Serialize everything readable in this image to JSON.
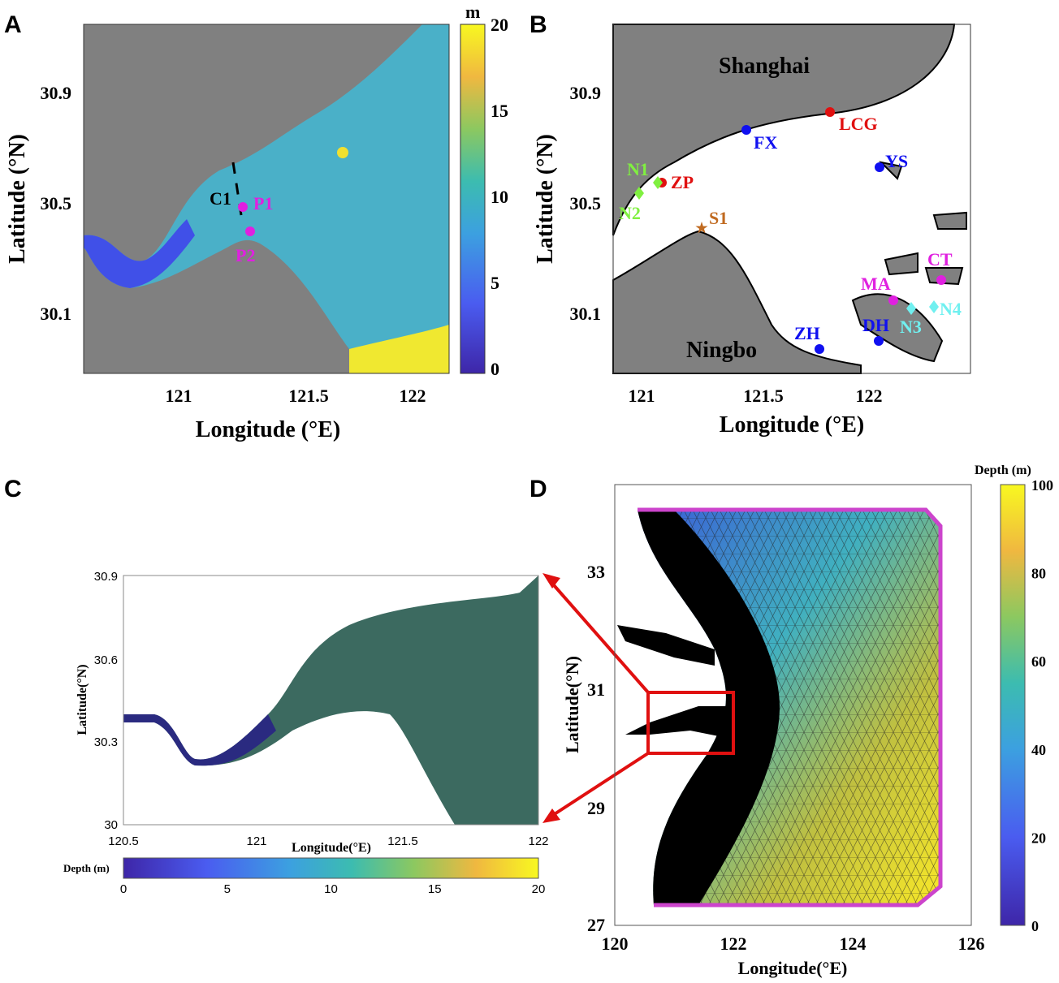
{
  "panels": {
    "A": {
      "label": "A",
      "xlabel": "Longitude (°E)",
      "ylabel": "Latitude (°N)",
      "xticks": [
        "121",
        "121.5",
        "122"
      ],
      "yticks": [
        "30.9",
        "30.5",
        "30.1"
      ],
      "colorbar": {
        "unit": "m",
        "ticks": [
          "20",
          "15",
          "10",
          "5",
          "0"
        ],
        "range": [
          0,
          20
        ]
      },
      "markers": [
        {
          "text": "C1",
          "color": "#000000"
        },
        {
          "text": "P1",
          "color": "#e020e0"
        },
        {
          "text": "P2",
          "color": "#e020e0"
        }
      ]
    },
    "B": {
      "label": "B",
      "xlabel": "Longitude (°E)",
      "ylabel": "Latitude (°N)",
      "xticks": [
        "121",
        "121.5",
        "122"
      ],
      "yticks": [
        "30.9",
        "30.5",
        "30.1"
      ],
      "places": [
        "Shanghai",
        "Ningbo"
      ],
      "stations": [
        {
          "text": "LCG",
          "color": "#e01010",
          "shape": "circle"
        },
        {
          "text": "ZP",
          "color": "#e01010",
          "shape": "circle"
        },
        {
          "text": "FX",
          "color": "#1010f0",
          "shape": "circle"
        },
        {
          "text": "YS",
          "color": "#1010f0",
          "shape": "circle"
        },
        {
          "text": "ZH",
          "color": "#1010f0",
          "shape": "circle"
        },
        {
          "text": "DH",
          "color": "#1010f0",
          "shape": "circle"
        },
        {
          "text": "N1",
          "color": "#80f040",
          "shape": "diamond"
        },
        {
          "text": "N2",
          "color": "#80f040",
          "shape": "diamond"
        },
        {
          "text": "S1",
          "color": "#c06a20",
          "shape": "star"
        },
        {
          "text": "MA",
          "color": "#e020e0",
          "shape": "circle"
        },
        {
          "text": "CT",
          "color": "#e020e0",
          "shape": "circle"
        },
        {
          "text": "N3",
          "color": "#70f0f0",
          "shape": "diamond"
        },
        {
          "text": "N4",
          "color": "#70f0f0",
          "shape": "diamond"
        }
      ]
    },
    "C": {
      "label": "C",
      "xlabel": "Longitude(°E)",
      "ylabel": "Latitude(°N)",
      "xticks": [
        "120.5",
        "121",
        "121.5",
        "122"
      ],
      "yticks": [
        "30.9",
        "30.6",
        "30.3",
        "30"
      ],
      "colorbar": {
        "title": "Depth (m)",
        "ticks": [
          "0",
          "5",
          "10",
          "15",
          "20"
        ],
        "range": [
          0,
          20
        ]
      }
    },
    "D": {
      "label": "D",
      "xlabel": "Longitude(°E)",
      "ylabel": "Latitude(°N)",
      "xticks": [
        "120",
        "122",
        "124",
        "126"
      ],
      "yticks": [
        "33",
        "31",
        "29",
        "27"
      ],
      "colorbar": {
        "title": "Depth (m)",
        "ticks": [
          "100",
          "80",
          "60",
          "40",
          "20",
          "0"
        ],
        "range": [
          0,
          100
        ]
      }
    }
  },
  "colors": {
    "land": "#808080",
    "highlight": "#e01010",
    "boundary": "#cc44cc"
  }
}
